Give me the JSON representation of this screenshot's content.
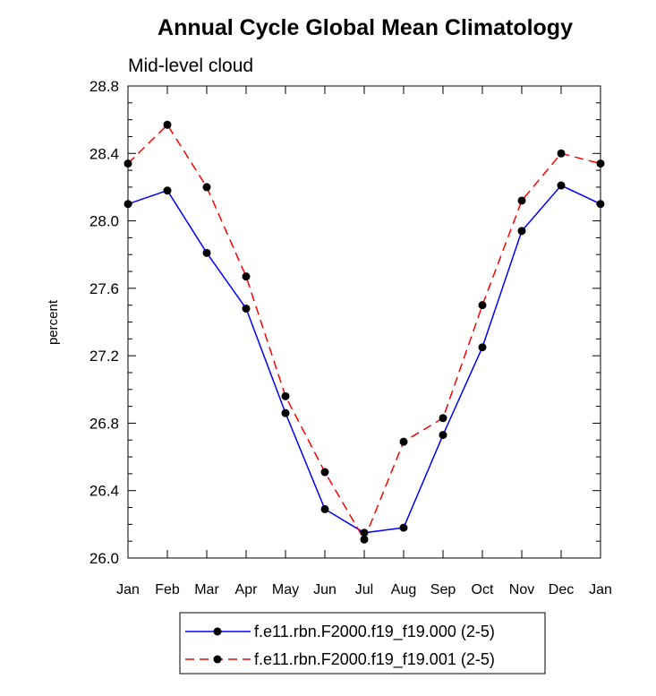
{
  "chart_data": {
    "type": "line",
    "title": "Annual Cycle Global Mean Climatology",
    "subtitle": "Mid-level cloud",
    "xlabel": "",
    "ylabel": "percent",
    "categories": [
      "Jan",
      "Feb",
      "Mar",
      "Apr",
      "May",
      "Jun",
      "Jul",
      "Aug",
      "Sep",
      "Oct",
      "Nov",
      "Dec",
      "Jan"
    ],
    "ylim": [
      26.0,
      28.8
    ],
    "yticks": [
      "26.0",
      "26.4",
      "26.8",
      "27.2",
      "27.6",
      "28.0",
      "28.4",
      "28.8"
    ],
    "series": [
      {
        "name": "f.e11.rbn.F2000.f19_f19.000 (2-5)",
        "color": "#0000ff",
        "dash": "solid",
        "values": [
          28.1,
          28.18,
          27.81,
          27.48,
          26.86,
          26.29,
          26.15,
          26.18,
          26.73,
          27.25,
          27.94,
          28.21,
          28.1
        ]
      },
      {
        "name": "f.e11.rbn.F2000.f19_f19.001 (2-5)",
        "color": "#ff0000",
        "dash": "dashed",
        "values": [
          28.34,
          28.57,
          28.2,
          27.67,
          26.96,
          26.51,
          26.11,
          26.69,
          26.83,
          27.5,
          28.12,
          28.4,
          28.34
        ]
      }
    ],
    "marker_color": "#000000",
    "legend_position": "bottom"
  }
}
